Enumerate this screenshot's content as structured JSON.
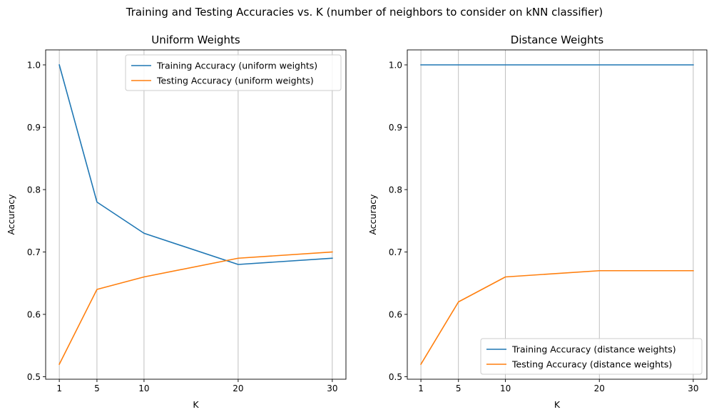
{
  "figure": {
    "suptitle": "Training and Testing Accuracies vs. K (number of neighbors to consider on kNN classifier)"
  },
  "chart_data": [
    {
      "type": "line",
      "title": "Uniform Weights",
      "xlabel": "K",
      "ylabel": "Accuracy",
      "x": [
        1,
        5,
        10,
        20,
        30
      ],
      "xticks": [
        "1",
        "5",
        "10",
        "20",
        "30"
      ],
      "yticks": [
        "0.5",
        "0.6",
        "0.7",
        "0.8",
        "0.9",
        "1.0"
      ],
      "xlim": [
        -0.45,
        31.45
      ],
      "ylim": [
        0.496,
        1.024
      ],
      "grid": "x",
      "legend": "upper right",
      "series": [
        {
          "name": "Training Accuracy (uniform weights)",
          "color": "#1f77b4",
          "values": [
            1.0,
            0.78,
            0.73,
            0.68,
            0.69
          ]
        },
        {
          "name": "Testing Accuracy (uniform weights)",
          "color": "#ff7f0e",
          "values": [
            0.52,
            0.64,
            0.66,
            0.69,
            0.7
          ]
        }
      ]
    },
    {
      "type": "line",
      "title": "Distance Weights",
      "xlabel": "K",
      "ylabel": "Accuracy",
      "x": [
        1,
        5,
        10,
        20,
        30
      ],
      "xticks": [
        "1",
        "5",
        "10",
        "20",
        "30"
      ],
      "yticks": [
        "0.5",
        "0.6",
        "0.7",
        "0.8",
        "0.9",
        "1.0"
      ],
      "xlim": [
        -0.45,
        31.45
      ],
      "ylim": [
        0.496,
        1.024
      ],
      "grid": "x",
      "legend": "lower right",
      "series": [
        {
          "name": "Training Accuracy (distance weights)",
          "color": "#1f77b4",
          "values": [
            1.0,
            1.0,
            1.0,
            1.0,
            1.0
          ]
        },
        {
          "name": "Testing Accuracy (distance weights)",
          "color": "#ff7f0e",
          "values": [
            0.52,
            0.62,
            0.66,
            0.67,
            0.67
          ]
        }
      ]
    }
  ]
}
